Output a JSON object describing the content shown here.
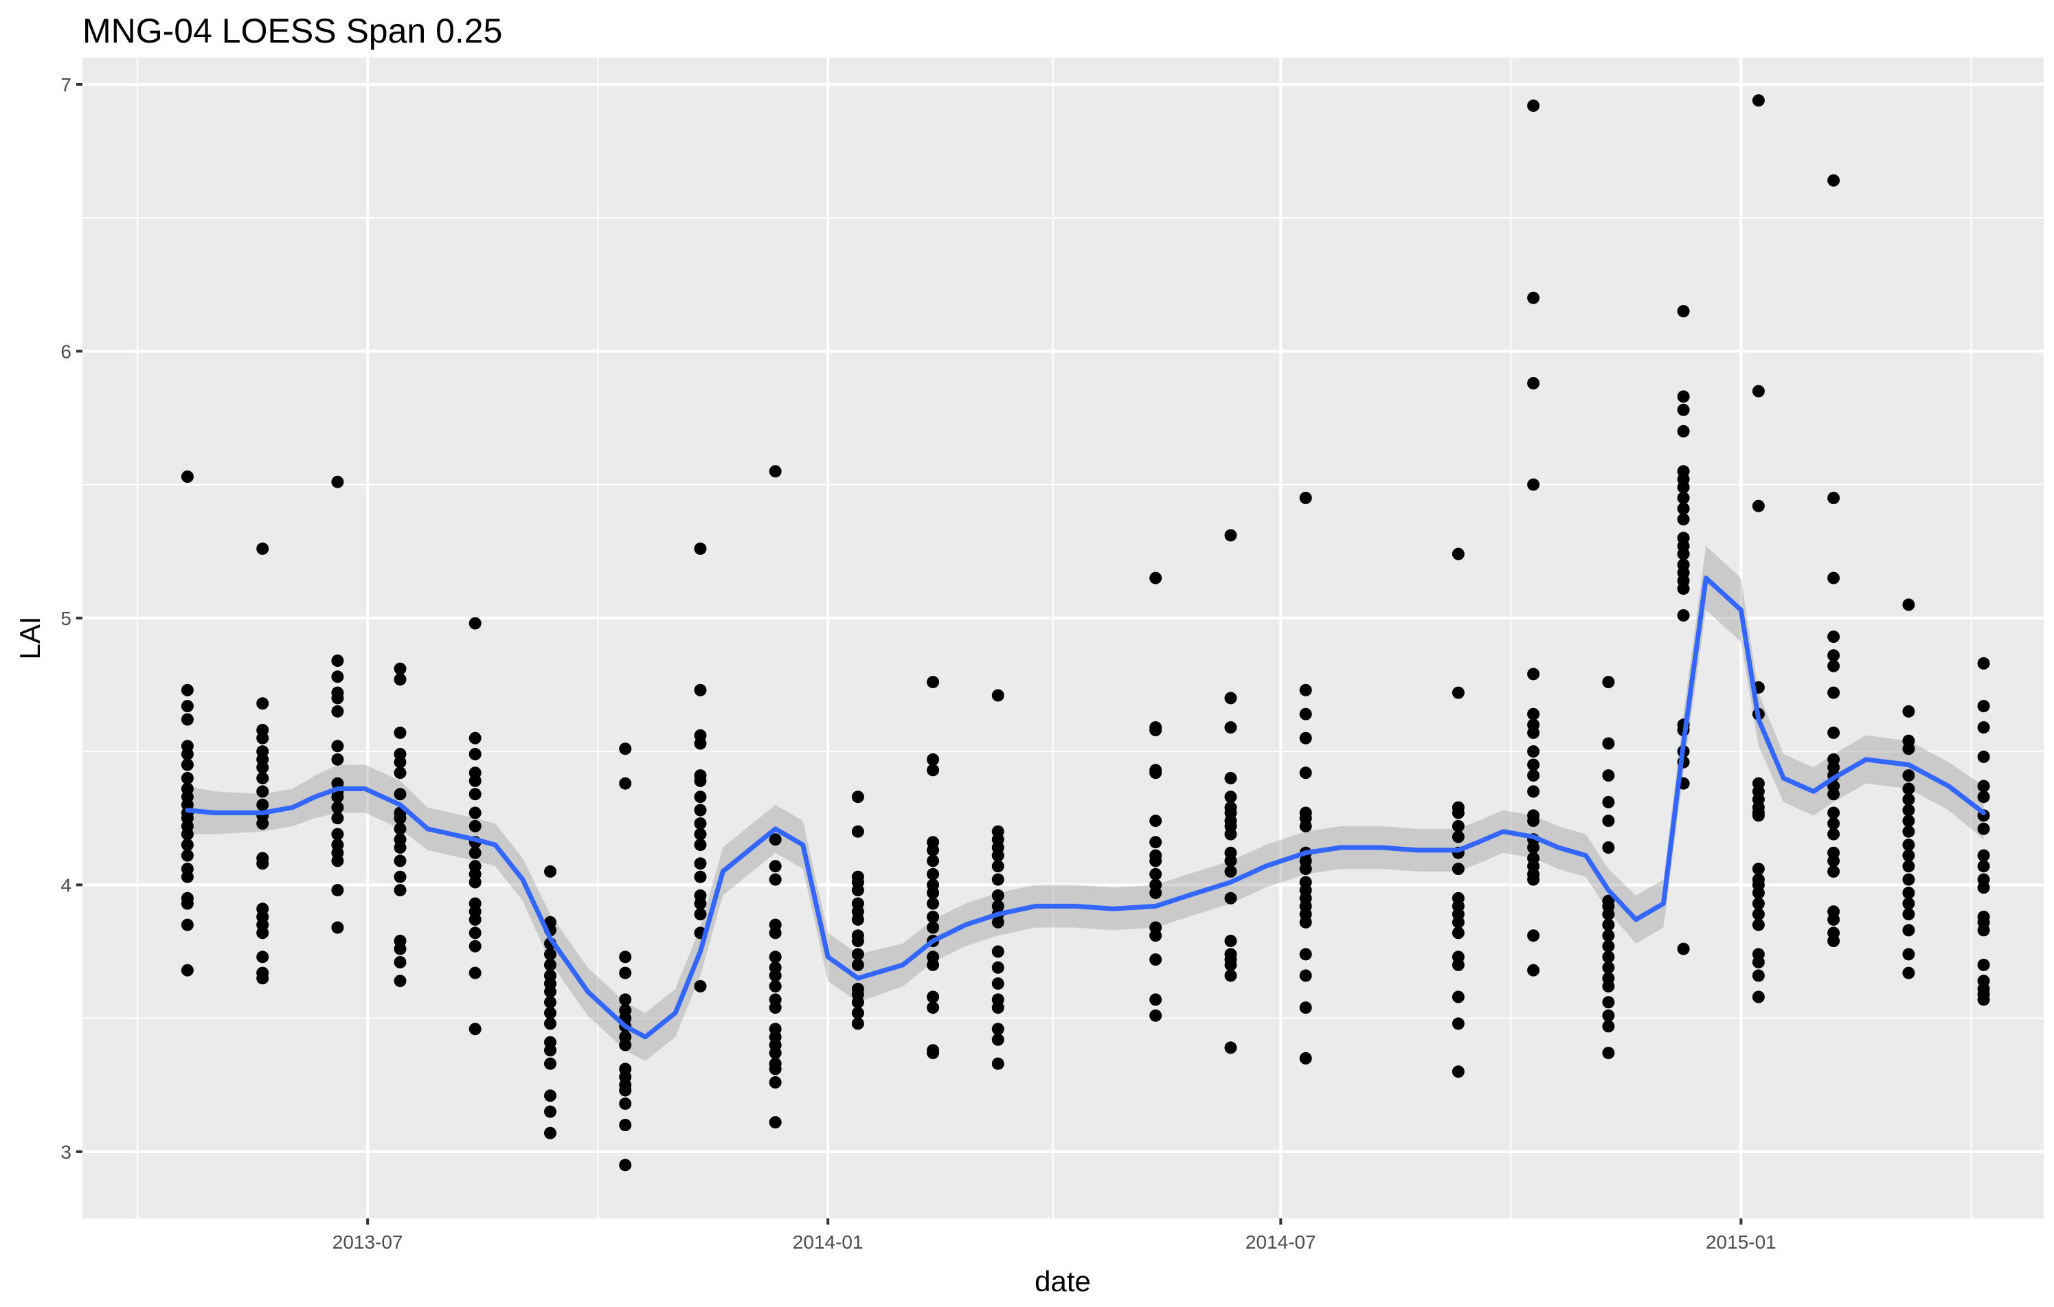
{
  "chart_data": {
    "type": "scatter",
    "title": "MNG-04 LOESS Span 0.25",
    "xlabel": "date",
    "ylabel": "LAI",
    "xlim": [
      "2013-03-09",
      "2015-05-02"
    ],
    "ylim": [
      2.75,
      7.1
    ],
    "x_ticks": [
      "2013-07-01",
      "2014-01-01",
      "2014-07-01",
      "2015-01-01"
    ],
    "x_tick_labels": [
      "2013-07",
      "2014-01",
      "2014-07",
      "2015-01"
    ],
    "y_ticks": [
      3,
      4,
      5,
      6,
      7
    ],
    "y_tick_labels": [
      "3",
      "4",
      "5",
      "6",
      "7"
    ],
    "grid": true,
    "colors": {
      "points": "#000000",
      "smooth": "#3366ff",
      "ribbon": "#999999",
      "panel": "#ebebeb",
      "grid": "#ffffff"
    },
    "series": [
      {
        "kind": "points",
        "groups": [
          {
            "date": "2013-04-20",
            "values": [
              5.53,
              4.73,
              4.67,
              4.62,
              4.52,
              4.49,
              4.45,
              4.4,
              4.36,
              4.33,
              4.3,
              4.27,
              4.25,
              4.22,
              4.19,
              4.15,
              4.11,
              4.06,
              4.03,
              3.95,
              3.93,
              3.85,
              3.68
            ]
          },
          {
            "date": "2013-05-20",
            "values": [
              5.26,
              4.68,
              4.58,
              4.55,
              4.5,
              4.47,
              4.44,
              4.4,
              4.35,
              4.3,
              4.26,
              4.23,
              4.1,
              4.08,
              3.91,
              3.88,
              3.85,
              3.82,
              3.73,
              3.67,
              3.65
            ]
          },
          {
            "date": "2013-06-19",
            "values": [
              5.51,
              4.84,
              4.78,
              4.72,
              4.7,
              4.65,
              4.52,
              4.47,
              4.38,
              4.35,
              4.33,
              4.29,
              4.25,
              4.19,
              4.15,
              4.12,
              4.09,
              3.98,
              3.84
            ]
          },
          {
            "date": "2013-07-14",
            "values": [
              4.81,
              4.77,
              4.57,
              4.49,
              4.46,
              4.42,
              4.34,
              4.27,
              4.25,
              4.21,
              4.17,
              4.14,
              4.09,
              4.03,
              3.98,
              3.79,
              3.76,
              3.71,
              3.64
            ]
          },
          {
            "date": "2013-08-13",
            "values": [
              4.98,
              4.55,
              4.49,
              4.42,
              4.39,
              4.34,
              4.27,
              4.22,
              4.16,
              4.12,
              4.07,
              4.04,
              4.01,
              3.93,
              3.9,
              3.87,
              3.82,
              3.77,
              3.67,
              3.46
            ]
          },
          {
            "date": "2013-09-12",
            "values": [
              4.05,
              3.86,
              3.83,
              3.78,
              3.74,
              3.7,
              3.66,
              3.63,
              3.6,
              3.56,
              3.52,
              3.48,
              3.41,
              3.38,
              3.33,
              3.21,
              3.15,
              3.07
            ]
          },
          {
            "date": "2013-10-12",
            "values": [
              4.51,
              4.38,
              3.73,
              3.67,
              3.57,
              3.53,
              3.5,
              3.47,
              3.43,
              3.4,
              3.31,
              3.28,
              3.25,
              3.23,
              3.18,
              3.1,
              2.95
            ]
          },
          {
            "date": "2013-11-11",
            "values": [
              5.26,
              4.73,
              4.56,
              4.53,
              4.41,
              4.39,
              4.33,
              4.28,
              4.23,
              4.19,
              4.15,
              4.08,
              4.03,
              3.96,
              3.93,
              3.89,
              3.82,
              3.62
            ]
          },
          {
            "date": "2013-12-11",
            "values": [
              5.55,
              4.17,
              4.07,
              4.02,
              3.85,
              3.82,
              3.73,
              3.69,
              3.66,
              3.62,
              3.57,
              3.54,
              3.46,
              3.43,
              3.4,
              3.37,
              3.33,
              3.31,
              3.26,
              3.11
            ]
          },
          {
            "date": "2014-01-13",
            "values": [
              4.33,
              4.2,
              4.03,
              4.01,
              3.98,
              3.93,
              3.9,
              3.87,
              3.81,
              3.79,
              3.74,
              3.7,
              3.61,
              3.59,
              3.56,
              3.52,
              3.48
            ]
          },
          {
            "date": "2014-02-12",
            "values": [
              4.76,
              4.47,
              4.43,
              4.16,
              4.13,
              4.09,
              4.04,
              4.0,
              3.97,
              3.93,
              3.88,
              3.84,
              3.79,
              3.73,
              3.7,
              3.58,
              3.54,
              3.38,
              3.37
            ]
          },
          {
            "date": "2014-03-10",
            "values": [
              4.71,
              4.2,
              4.17,
              4.14,
              4.11,
              4.07,
              4.02,
              3.96,
              3.92,
              3.89,
              3.86,
              3.75,
              3.69,
              3.63,
              3.57,
              3.54,
              3.46,
              3.42,
              3.33
            ]
          },
          {
            "date": "2014-05-12",
            "values": [
              5.15,
              4.59,
              4.58,
              4.43,
              4.42,
              4.24,
              4.16,
              4.11,
              4.09,
              4.04,
              4.0,
              3.97,
              3.84,
              3.81,
              3.72,
              3.57,
              3.51
            ]
          },
          {
            "date": "2014-06-11",
            "values": [
              5.31,
              4.7,
              4.59,
              4.4,
              4.33,
              4.29,
              4.27,
              4.24,
              4.22,
              4.19,
              4.12,
              4.09,
              4.05,
              3.95,
              3.79,
              3.74,
              3.72,
              3.7,
              3.66,
              3.39
            ]
          },
          {
            "date": "2014-07-11",
            "values": [
              5.45,
              4.73,
              4.64,
              4.55,
              4.42,
              4.27,
              4.25,
              4.22,
              4.12,
              4.09,
              4.06,
              4.01,
              3.98,
              3.95,
              3.92,
              3.89,
              3.86,
              3.74,
              3.66,
              3.54,
              3.35
            ]
          },
          {
            "date": "2014-09-10",
            "values": [
              5.24,
              4.72,
              4.29,
              4.27,
              4.22,
              4.18,
              4.12,
              4.06,
              3.95,
              3.92,
              3.89,
              3.86,
              3.82,
              3.73,
              3.7,
              3.58,
              3.48,
              3.3
            ]
          },
          {
            "date": "2014-10-10",
            "values": [
              6.92,
              6.2,
              5.88,
              5.5,
              4.79,
              4.64,
              4.6,
              4.57,
              4.5,
              4.45,
              4.41,
              4.35,
              4.26,
              4.24,
              4.17,
              4.14,
              4.1,
              4.07,
              4.04,
              4.02,
              3.81,
              3.68
            ]
          },
          {
            "date": "2014-11-09",
            "values": [
              4.76,
              4.53,
              4.41,
              4.31,
              4.24,
              4.14,
              3.94,
              3.92,
              3.89,
              3.85,
              3.81,
              3.77,
              3.73,
              3.69,
              3.65,
              3.62,
              3.56,
              3.51,
              3.47,
              3.37
            ]
          },
          {
            "date": "2014-12-09",
            "values": [
              6.15,
              5.83,
              5.78,
              5.7,
              5.55,
              5.52,
              5.49,
              5.45,
              5.41,
              5.37,
              5.3,
              5.27,
              5.24,
              5.2,
              5.17,
              5.14,
              5.11,
              5.01,
              4.6,
              4.58,
              4.5,
              4.46,
              4.38,
              3.76
            ]
          },
          {
            "date": "2015-01-08",
            "values": [
              6.94,
              5.85,
              5.42,
              4.74,
              4.64,
              4.38,
              4.35,
              4.32,
              4.29,
              4.27,
              4.26,
              4.06,
              4.02,
              4.0,
              3.97,
              3.93,
              3.89,
              3.85,
              3.74,
              3.71,
              3.66,
              3.58
            ]
          },
          {
            "date": "2015-02-07",
            "values": [
              6.64,
              5.45,
              5.15,
              4.93,
              4.86,
              4.82,
              4.72,
              4.57,
              4.47,
              4.44,
              4.41,
              4.37,
              4.34,
              4.27,
              4.23,
              4.19,
              4.12,
              4.09,
              4.05,
              3.9,
              3.87,
              3.82,
              3.79
            ]
          },
          {
            "date": "2015-03-09",
            "values": [
              5.05,
              4.65,
              4.54,
              4.51,
              4.41,
              4.36,
              4.32,
              4.28,
              4.24,
              4.2,
              4.15,
              4.11,
              4.07,
              4.02,
              3.97,
              3.93,
              3.89,
              3.83,
              3.74,
              3.67
            ]
          },
          {
            "date": "2015-04-08",
            "values": [
              4.83,
              4.67,
              4.59,
              4.48,
              4.37,
              4.33,
              4.26,
              4.21,
              4.11,
              4.07,
              4.02,
              3.99,
              3.88,
              3.86,
              3.83,
              3.7,
              3.64,
              3.61,
              3.59,
              3.57
            ]
          }
        ]
      },
      {
        "kind": "loess",
        "x": [
          "2013-04-20",
          "2013-05-01",
          "2013-05-20",
          "2013-06-01",
          "2013-06-10",
          "2013-06-19",
          "2013-06-30",
          "2013-07-14",
          "2013-07-25",
          "2013-08-13",
          "2013-08-21",
          "2013-09-01",
          "2013-09-12",
          "2013-09-27",
          "2013-10-12",
          "2013-10-20",
          "2013-11-01",
          "2013-11-11",
          "2013-11-20",
          "2013-12-11",
          "2013-12-22",
          "2014-01-01",
          "2014-01-13",
          "2014-01-31",
          "2014-02-12",
          "2014-02-25",
          "2014-03-10",
          "2014-03-25",
          "2014-04-10",
          "2014-04-25",
          "2014-05-12",
          "2014-05-25",
          "2014-06-11",
          "2014-06-25",
          "2014-07-11",
          "2014-07-25",
          "2014-08-10",
          "2014-08-25",
          "2014-09-10",
          "2014-09-18",
          "2014-09-28",
          "2014-10-10",
          "2014-10-20",
          "2014-10-31",
          "2014-11-09",
          "2014-11-20",
          "2014-12-01",
          "2014-12-09",
          "2014-12-18",
          "2015-01-01",
          "2015-01-08",
          "2015-01-18",
          "2015-01-30",
          "2015-02-07",
          "2015-02-20",
          "2015-03-09",
          "2015-03-25",
          "2015-04-08"
        ],
        "y": [
          4.28,
          4.27,
          4.27,
          4.29,
          4.33,
          4.36,
          4.36,
          4.3,
          4.21,
          4.17,
          4.15,
          4.02,
          3.8,
          3.6,
          3.47,
          3.43,
          3.52,
          3.75,
          4.05,
          4.21,
          4.15,
          3.73,
          3.65,
          3.7,
          3.79,
          3.85,
          3.89,
          3.92,
          3.92,
          3.91,
          3.92,
          3.96,
          4.01,
          4.07,
          4.12,
          4.14,
          4.14,
          4.13,
          4.13,
          4.16,
          4.2,
          4.18,
          4.14,
          4.11,
          3.98,
          3.87,
          3.93,
          4.53,
          5.15,
          5.03,
          4.62,
          4.4,
          4.35,
          4.4,
          4.47,
          4.45,
          4.37,
          4.27
        ],
        "se": [
          0.09,
          0.08,
          0.07,
          0.07,
          0.08,
          0.09,
          0.09,
          0.09,
          0.08,
          0.08,
          0.08,
          0.08,
          0.09,
          0.09,
          0.09,
          0.09,
          0.09,
          0.09,
          0.09,
          0.09,
          0.09,
          0.09,
          0.09,
          0.08,
          0.08,
          0.08,
          0.08,
          0.08,
          0.08,
          0.08,
          0.08,
          0.08,
          0.08,
          0.08,
          0.08,
          0.08,
          0.08,
          0.08,
          0.08,
          0.08,
          0.08,
          0.08,
          0.08,
          0.08,
          0.08,
          0.09,
          0.09,
          0.11,
          0.12,
          0.12,
          0.1,
          0.09,
          0.09,
          0.09,
          0.09,
          0.09,
          0.09,
          0.1
        ]
      }
    ]
  }
}
